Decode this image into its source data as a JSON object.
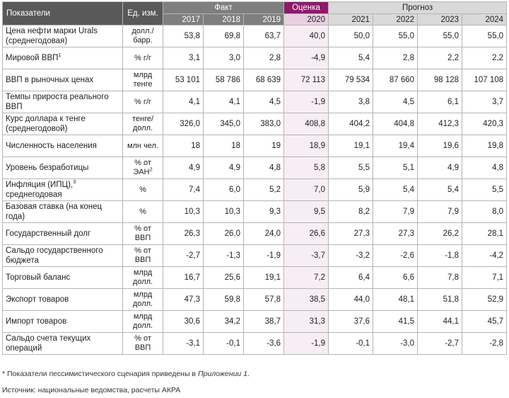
{
  "header": {
    "indicators": "Показатели",
    "unit": "Ед. изм.",
    "fact": "Факт",
    "estimate": "Оценка",
    "forecast": "Прогноз",
    "years": [
      "2017",
      "2018",
      "2019",
      "2020",
      "2021",
      "2022",
      "2023",
      "2024"
    ]
  },
  "rows": [
    {
      "label": "Цена нефти марки Urals (среднегодовая)",
      "unit": "долл./барр.",
      "values": [
        "53,8",
        "69,8",
        "63,7",
        "40,0",
        "50,0",
        "55,0",
        "55,0",
        "55,0"
      ]
    },
    {
      "label": "Мировой ВВП",
      "sup": "1",
      "unit": "% г/г",
      "values": [
        "3,1",
        "3,0",
        "2,8",
        "-4,9",
        "5,4",
        "2,8",
        "2,2",
        "2,2"
      ]
    },
    {
      "label": "ВВП в рыночных ценах",
      "unit": "млрд тенге",
      "values": [
        "53 101",
        "58 786",
        "68 639",
        "72 113",
        "79 534",
        "87 660",
        "98 128",
        "107 108"
      ]
    },
    {
      "label": "Темпы прироста реального ВВП",
      "unit": "% г/г",
      "values": [
        "4,1",
        "4,1",
        "4,5",
        "-1,9",
        "3,8",
        "4,5",
        "6,1",
        "3,7"
      ]
    },
    {
      "label": "Курс доллара к тенге (среднегодовой)",
      "unit": "тенге/долл.",
      "values": [
        "326,0",
        "345,0",
        "383,0",
        "408,8",
        "404,2",
        "404,8",
        "412,3",
        "420,3"
      ]
    },
    {
      "label": "Численность населения",
      "unit": "млн чел.",
      "values": [
        "18",
        "18",
        "19",
        "18,9",
        "19,1",
        "19,4",
        "19,6",
        "19,8"
      ]
    },
    {
      "label": "Уровень безработицы",
      "unit": "% от ЭАН",
      "unit_sup": "2",
      "values": [
        "4,9",
        "4,9",
        "4,8",
        "5,8",
        "5,5",
        "5,1",
        "4,9",
        "4,8"
      ]
    },
    {
      "label_pre": "Инфляция (ИПЦ),",
      "sup": "3",
      "label_post": " среднегодовая",
      "unit": "%",
      "values": [
        "7,4",
        "6,0",
        "5,2",
        "7,0",
        "5,9",
        "5,4",
        "5,4",
        "5,5"
      ]
    },
    {
      "label": "Базовая ставка (на конец года)",
      "unit": "%",
      "values": [
        "10,3",
        "10,3",
        "9,3",
        "9,5",
        "8,2",
        "7,9",
        "7,9",
        "8,0"
      ]
    },
    {
      "label": "Государственный долг",
      "unit": "% от ВВП",
      "values": [
        "26,3",
        "26,0",
        "24,0",
        "26,6",
        "27,3",
        "27,3",
        "26,2",
        "28,1"
      ]
    },
    {
      "label": "Сальдо государственного бюджета",
      "unit": "% от ВВП",
      "values": [
        "-2,7",
        "-1,3",
        "-1,9",
        "-3,7",
        "-3,2",
        "-2,6",
        "-1,8",
        "-4,2"
      ]
    },
    {
      "label": "Торговый баланс",
      "unit": "млрд долл.",
      "values": [
        "16,7",
        "25,6",
        "19,1",
        "7,2",
        "6,4",
        "6,6",
        "7,8",
        "7,1"
      ]
    },
    {
      "label": "Экспорт товаров",
      "unit": "млрд долл.",
      "values": [
        "47,3",
        "59,8",
        "57,8",
        "38,5",
        "44,0",
        "48,1",
        "51,8",
        "52,9"
      ]
    },
    {
      "label": "Импорт товаров",
      "unit": "млрд долл.",
      "values": [
        "30,6",
        "34,2",
        "38,7",
        "31,3",
        "37,6",
        "41,5",
        "44,1",
        "45,7"
      ]
    },
    {
      "label": "Сальдо счета текущих операций",
      "unit": "% от ВВП",
      "values": [
        "-3,1",
        "-0,1",
        "-3,6",
        "-1,9",
        "-0,1",
        "-3,0",
        "-2,7",
        "-2,8"
      ]
    }
  ],
  "footnote": {
    "text": "* Показатели пессимистического сценария приведены в ",
    "italic": "Приложении 1",
    "end": "."
  },
  "source": "Источник: национальные ведомства, расчеты АКРА",
  "colors": {
    "header_dark": "#595959",
    "estimate": "#8c1a6a",
    "forecast": "#d9d9d9"
  }
}
